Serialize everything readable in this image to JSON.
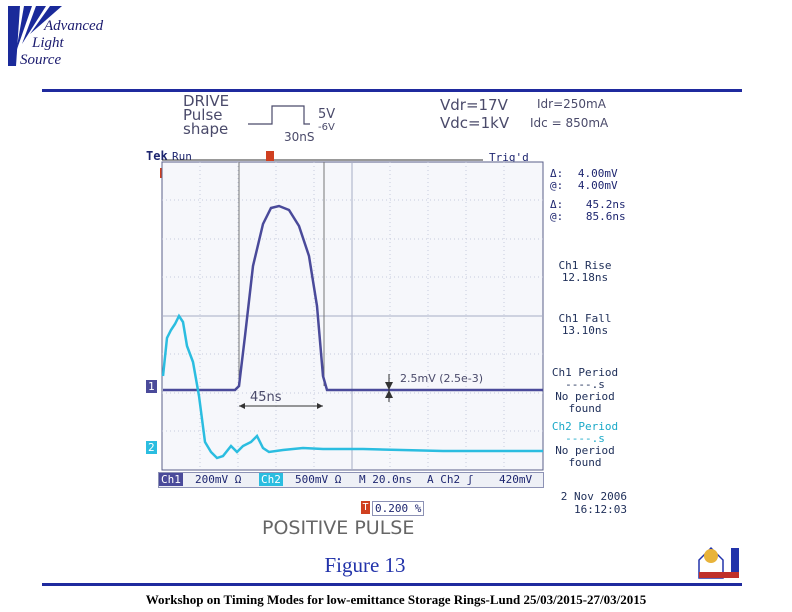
{
  "logo": {
    "line1": "Advanced",
    "line2": "Light",
    "line3": "Source"
  },
  "notes": {
    "drive_line1": "DRIVE",
    "drive_line2": "Pulse",
    "drive_line3": "shape",
    "amp_5v": "5V",
    "amp_neg6v": "-6V",
    "width_30ns": "30nS",
    "vdr": "Vdr=17V",
    "vdc": "Vdc=1kV",
    "idr": "Idr=250mA",
    "idc": "Idc = 850mA",
    "measure": "2.5mV (2.5e-3)",
    "width_label": "45ns",
    "caption": "POSITIVE PULSE"
  },
  "scope": {
    "brand": "Tek",
    "state": "Run",
    "trig_status": "Trig'd",
    "ch1_marker": "1",
    "ch2_marker": "2",
    "trigger_marker": "T",
    "delta_v_label": "Δ:",
    "delta_v": "4.00mV",
    "at_v_label": "@:",
    "at_v": "4.00mV",
    "delta_t_label": "Δ:",
    "delta_t": "45.2ns",
    "at_t_label": "@:",
    "at_t": "85.6ns",
    "ch1_rise_label": "Ch1 Rise",
    "ch1_rise": "12.18ns",
    "ch1_fall_label": "Ch1 Fall",
    "ch1_fall": "13.10ns",
    "ch1_period_label": "Ch1 Period",
    "ch1_period": "----.s",
    "ch1_period_status1": "No period",
    "ch1_period_status2": "found",
    "ch2_period_label": "Ch2 Period",
    "ch2_period": "----.s",
    "ch2_period_status1": "No period",
    "ch2_period_status2": "found",
    "ch1": "Ch1",
    "ch1_scale": "200mV Ω",
    "ch2": "Ch2",
    "ch2_scale": "500mV Ω",
    "timebase": "M 20.0ns",
    "trig_source": "A  Ch2 ʃ",
    "trig_level": "420mV",
    "trig_pos_marker": "T",
    "trig_pos": "0.200 %",
    "date": "2 Nov 2006",
    "time": "16:12:03"
  },
  "colors": {
    "ch1": "#4a4a9a",
    "ch2": "#2bbde0",
    "rule": "#1f2a9e",
    "caption": "#2233aa"
  },
  "figure": "Figure 13",
  "footer": "Workshop on Timing Modes for low-emittance Storage Rings-Lund 25/03/2015-27/03/2015",
  "badge_icon": "lund-castle-icon"
}
